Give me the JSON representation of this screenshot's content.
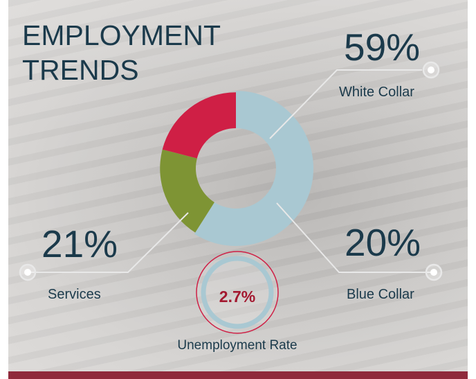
{
  "title_lines": [
    "EMPLOYMENT",
    "TRENDS"
  ],
  "chart_data": {
    "type": "pie",
    "variant": "donut",
    "title": "EMPLOYMENT TRENDS",
    "categories": [
      "White Collar",
      "Blue Collar",
      "Services"
    ],
    "values": [
      59,
      20,
      21
    ],
    "value_labels": [
      "59%",
      "20%",
      "21%"
    ],
    "colors": [
      "#a9c8d2",
      "#7e9434",
      "#cf1f45"
    ],
    "legend_placement": "callouts"
  },
  "unemployment": {
    "value": "2.7%",
    "label": "Unemployment Rate",
    "ring_color": "#a9c8d2",
    "border_color": "#cf1f45",
    "text_color": "#a3182f"
  },
  "colors": {
    "text": "#1b3a4b",
    "accent_bar": "#8f2a3b",
    "leader_line": "#e8e8e8"
  }
}
